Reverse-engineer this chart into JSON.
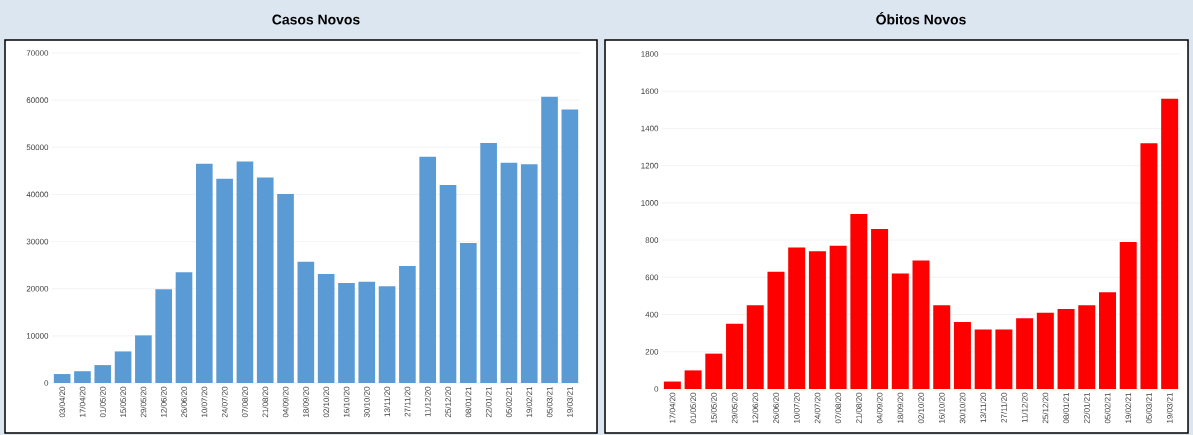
{
  "chart_data": [
    {
      "type": "bar",
      "title": "Casos Novos",
      "color": "#5b9bd5",
      "ylim": [
        0,
        70000
      ],
      "yticks": [
        0,
        10000,
        20000,
        30000,
        40000,
        50000,
        60000,
        70000
      ],
      "grid": "y",
      "categories": [
        "03/04/20",
        "17/04/20",
        "01/05/20",
        "15/05/20",
        "29/05/20",
        "12/06/20",
        "26/06/20",
        "10/07/20",
        "24/07/20",
        "07/08/20",
        "21/08/20",
        "04/09/20",
        "18/09/20",
        "02/10/20",
        "16/10/20",
        "30/10/20",
        "13/11/20",
        "27/11/20",
        "11/12/20",
        "25/12/20",
        "08/01/21",
        "22/01/21",
        "05/02/21",
        "19/02/21",
        "05/03/21",
        "19/03/21"
      ],
      "values": [
        1900,
        2500,
        3800,
        6700,
        10100,
        19900,
        23500,
        46500,
        43300,
        47000,
        43600,
        40100,
        25700,
        23100,
        21200,
        21500,
        20500,
        24800,
        48000,
        42000,
        29700,
        50900,
        46700,
        46400,
        60700,
        58000
      ]
    },
    {
      "type": "bar",
      "title": "Óbitos Novos",
      "color": "#ff0000",
      "ylim": [
        0,
        1800
      ],
      "yticks": [
        0,
        200,
        400,
        600,
        800,
        1000,
        1200,
        1400,
        1600,
        1800
      ],
      "grid": "y",
      "categories": [
        "17/04/20",
        "01/05/20",
        "15/05/20",
        "29/05/20",
        "12/06/20",
        "26/06/20",
        "10/07/20",
        "24/07/20",
        "07/08/20",
        "21/08/20",
        "04/09/20",
        "18/09/20",
        "02/10/20",
        "16/10/20",
        "30/10/20",
        "13/11/20",
        "27/11/20",
        "11/12/20",
        "25/12/20",
        "08/01/21",
        "22/01/21",
        "05/02/21",
        "19/02/21",
        "05/03/21",
        "19/03/21"
      ],
      "values": [
        40,
        100,
        190,
        350,
        450,
        630,
        760,
        740,
        770,
        940,
        860,
        620,
        690,
        450,
        360,
        320,
        320,
        380,
        410,
        430,
        450,
        520,
        790,
        1320,
        1560
      ]
    }
  ]
}
